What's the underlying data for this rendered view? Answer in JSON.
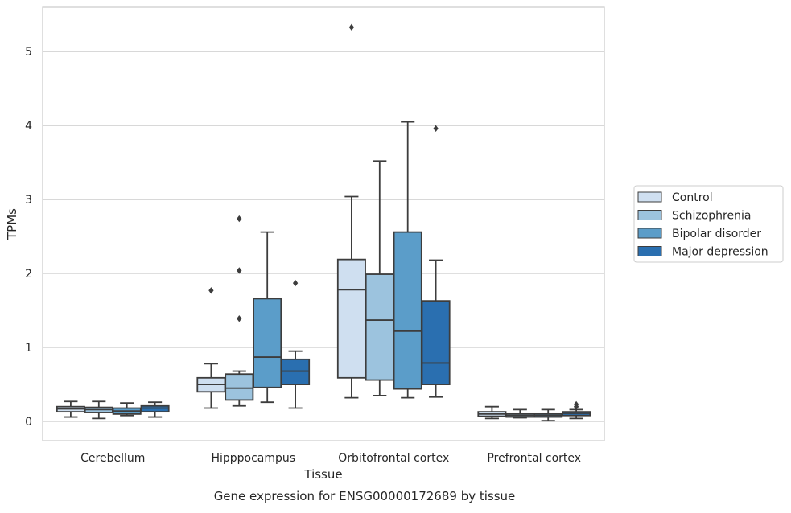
{
  "chart_data": {
    "type": "boxplot",
    "title": "Gene expression for ENSG00000172689 by tissue",
    "xlabel": "Tissue",
    "ylabel": "TPMs",
    "ylim": [
      -0.26,
      5.6
    ],
    "yticks": [
      0,
      1,
      2,
      3,
      4,
      5
    ],
    "grid": true,
    "legend_position": "right",
    "categories": [
      "Cerebellum",
      "Hipppocampus",
      "Orbitofrontal cortex",
      "Prefrontal cortex"
    ],
    "series": [
      {
        "name": "Control",
        "color": "#cfdff0",
        "boxes": [
          {
            "whislo": 0.06,
            "q1": 0.13,
            "med": 0.17,
            "q3": 0.2,
            "whishi": 0.27,
            "fliers": []
          },
          {
            "whislo": 0.18,
            "q1": 0.4,
            "med": 0.5,
            "q3": 0.59,
            "whishi": 0.78,
            "fliers": [
              1.77
            ]
          },
          {
            "whislo": 0.32,
            "q1": 0.59,
            "med": 1.78,
            "q3": 2.19,
            "whishi": 3.04,
            "fliers": [
              5.33
            ]
          },
          {
            "whislo": 0.04,
            "q1": 0.07,
            "med": 0.1,
            "q3": 0.13,
            "whishi": 0.2,
            "fliers": []
          }
        ]
      },
      {
        "name": "Schizophrenia",
        "color": "#9cc3de",
        "boxes": [
          {
            "whislo": 0.04,
            "q1": 0.12,
            "med": 0.16,
            "q3": 0.19,
            "whishi": 0.27,
            "fliers": []
          },
          {
            "whislo": 0.21,
            "q1": 0.29,
            "med": 0.45,
            "q3": 0.64,
            "whishi": 0.68,
            "fliers": [
              2.74,
              2.04,
              1.39
            ]
          },
          {
            "whislo": 0.35,
            "q1": 0.56,
            "med": 1.37,
            "q3": 1.99,
            "whishi": 3.52,
            "fliers": []
          },
          {
            "whislo": 0.05,
            "q1": 0.06,
            "med": 0.08,
            "q3": 0.1,
            "whishi": 0.16,
            "fliers": []
          }
        ]
      },
      {
        "name": "Bipolar disorder",
        "color": "#5b9dc9",
        "boxes": [
          {
            "whislo": 0.08,
            "q1": 0.1,
            "med": 0.14,
            "q3": 0.18,
            "whishi": 0.25,
            "fliers": []
          },
          {
            "whislo": 0.26,
            "q1": 0.46,
            "med": 0.87,
            "q3": 1.66,
            "whishi": 2.56,
            "fliers": []
          },
          {
            "whislo": 0.32,
            "q1": 0.44,
            "med": 1.22,
            "q3": 2.56,
            "whishi": 4.05,
            "fliers": []
          },
          {
            "whislo": 0.01,
            "q1": 0.06,
            "med": 0.08,
            "q3": 0.1,
            "whishi": 0.16,
            "fliers": []
          }
        ]
      },
      {
        "name": "Major depression",
        "color": "#2a6fb0",
        "boxes": [
          {
            "whislo": 0.06,
            "q1": 0.13,
            "med": 0.18,
            "q3": 0.21,
            "whishi": 0.26,
            "fliers": []
          },
          {
            "whislo": 0.18,
            "q1": 0.5,
            "med": 0.68,
            "q3": 0.84,
            "whishi": 0.95,
            "fliers": [
              1.87
            ]
          },
          {
            "whislo": 0.33,
            "q1": 0.5,
            "med": 0.79,
            "q3": 1.63,
            "whishi": 2.18,
            "fliers": [
              3.96
            ]
          },
          {
            "whislo": 0.04,
            "q1": 0.08,
            "med": 0.11,
            "q3": 0.13,
            "whishi": 0.16,
            "fliers": [
              0.23,
              0.2
            ]
          }
        ]
      }
    ]
  }
}
